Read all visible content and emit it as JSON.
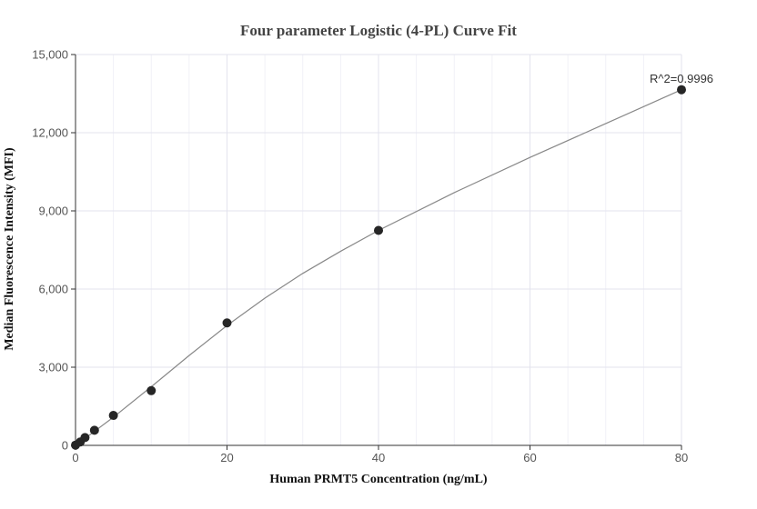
{
  "chart_data": {
    "type": "scatter",
    "title": "Four parameter Logistic (4-PL) Curve Fit",
    "xlabel": "Human PRMT5 Concentration (ng/mL)",
    "ylabel": "Median Fluorescence Intensity (MFI)",
    "xlim": [
      0,
      80
    ],
    "ylim": [
      0,
      15000
    ],
    "xticks": [
      0,
      20,
      40,
      60,
      80
    ],
    "xtick_labels": [
      "0",
      "20",
      "40",
      "60",
      "80"
    ],
    "yticks": [
      0,
      3000,
      6000,
      9000,
      12000,
      15000
    ],
    "ytick_labels": [
      "0",
      "3,000",
      "6,000",
      "9,000",
      "12,000",
      "15,000"
    ],
    "grid": true,
    "series": [
      {
        "kind": "points",
        "x": [
          0,
          0.625,
          1.25,
          2.5,
          5,
          10,
          20,
          40,
          80
        ],
        "y": [
          10,
          130,
          300,
          580,
          1150,
          2100,
          4700,
          8250,
          13650
        ]
      },
      {
        "kind": "fit-curve",
        "x": [
          0,
          2,
          5,
          10,
          15,
          20,
          25,
          30,
          35,
          40,
          50,
          60,
          70,
          80
        ],
        "y": [
          0,
          430,
          1080,
          2250,
          3450,
          4600,
          5650,
          6600,
          7450,
          8250,
          9700,
          11050,
          12350,
          13650
        ]
      }
    ],
    "annotation": "R^2=0.9996"
  }
}
